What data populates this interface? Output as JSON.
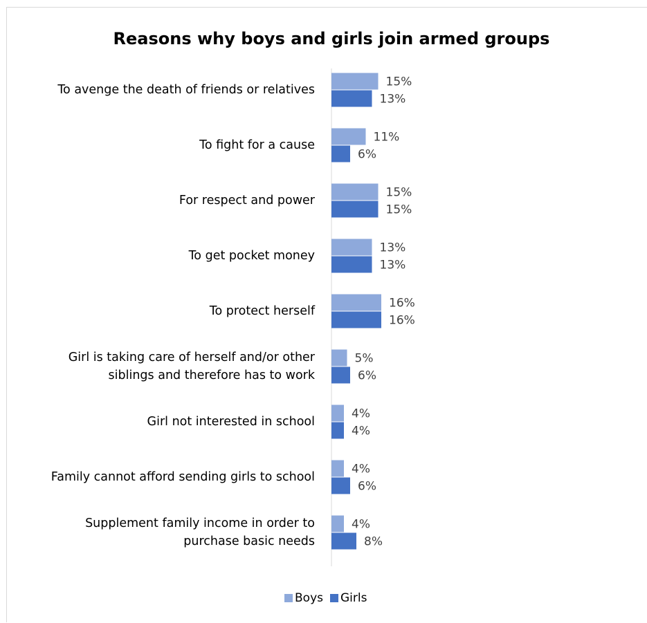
{
  "chart_data": {
    "type": "bar",
    "orientation": "horizontal",
    "title": "Reasons why boys and girls join armed groups",
    "xlabel": "",
    "ylabel": "",
    "xlim": [
      0,
      100
    ],
    "grid": false,
    "legend_position": "bottom",
    "categories": [
      [
        "To avenge the death of friends or relatives"
      ],
      [
        "To fight for a cause"
      ],
      [
        "For respect and power"
      ],
      [
        "To get pocket money"
      ],
      [
        "To protect herself"
      ],
      [
        "Girl is taking care of herself and/or other",
        "siblings and therefore has to work"
      ],
      [
        "Girl not interested in school"
      ],
      [
        "Family cannot afford sending girls  to school"
      ],
      [
        "Supplement family income in order to",
        "purchase basic needs"
      ]
    ],
    "series": [
      {
        "name": "Boys",
        "color": "#8EA9DB",
        "values": [
          15,
          11,
          15,
          13,
          16,
          5,
          4,
          4,
          4
        ],
        "labels": [
          "15%",
          "11%",
          "15%",
          "13%",
          "16%",
          "5%",
          "4%",
          "4%",
          "4%"
        ]
      },
      {
        "name": "Girls",
        "color": "#4472C4",
        "values": [
          13,
          6,
          15,
          13,
          16,
          6,
          4,
          6,
          8
        ],
        "labels": [
          "13%",
          "6%",
          "15%",
          "13%",
          "16%",
          "6%",
          "4%",
          "6%",
          "8%"
        ]
      }
    ]
  }
}
